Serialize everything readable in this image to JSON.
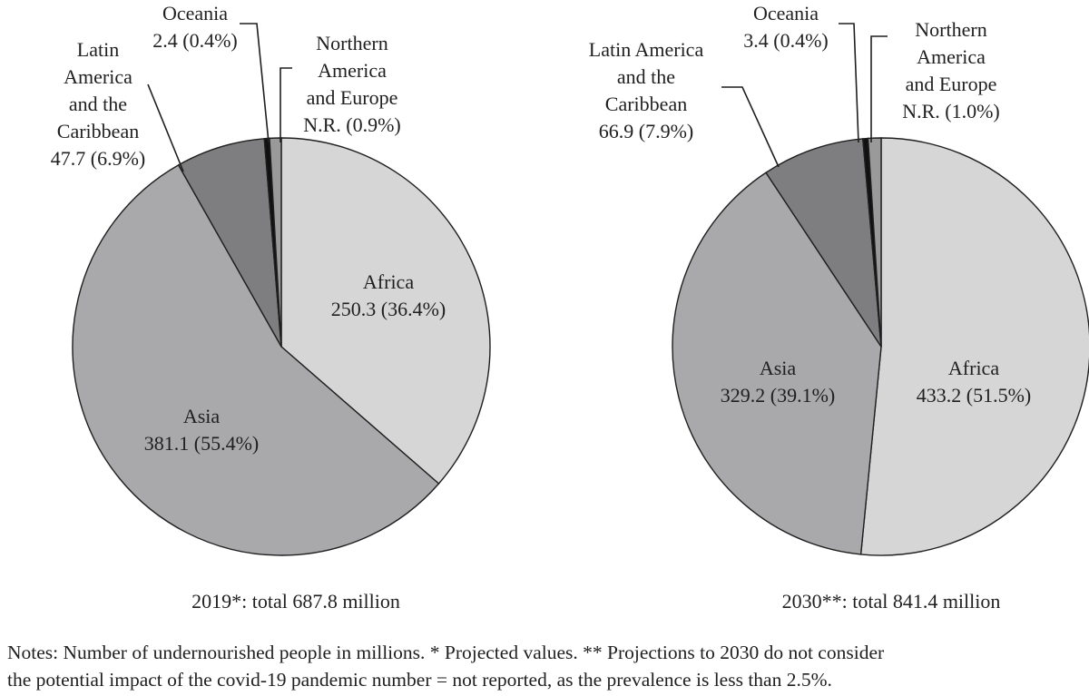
{
  "chart_data": [
    {
      "type": "pie",
      "caption": "2019*: total 687.8 million",
      "slices": [
        {
          "label": "Africa",
          "value_text": "250.3 (36.4%)",
          "value": 250.3,
          "percent": 36.4,
          "color": "#d6d6d6"
        },
        {
          "label": "Asia",
          "value_text": "381.1 (55.4%)",
          "value": 381.1,
          "percent": 55.4,
          "color": "#a9a9ab"
        },
        {
          "label": "Latin America and the Caribbean",
          "label_lines": [
            "Latin",
            "America",
            "and the",
            "Caribbean",
            "47.7 (6.9%)"
          ],
          "value": 47.7,
          "percent": 6.9,
          "color": "#7e7e80"
        },
        {
          "label": "Oceania",
          "label_lines": [
            "Oceania",
            "2.4 (0.4%)"
          ],
          "value": 2.4,
          "percent": 0.4,
          "color": "#111111"
        },
        {
          "label": "Northern America and Europe",
          "label_lines": [
            "Northern",
            "America",
            "and Europe",
            "N.R. (0.9%)"
          ],
          "value": null,
          "percent": 0.9,
          "color": "#9a9a9a"
        }
      ]
    },
    {
      "type": "pie",
      "caption": "2030**: total 841.4 million",
      "slices": [
        {
          "label": "Africa",
          "value_text": "433.2 (51.5%)",
          "value": 433.2,
          "percent": 51.5,
          "color": "#d6d6d6"
        },
        {
          "label": "Asia",
          "value_text": "329.2 (39.1%)",
          "value": 329.2,
          "percent": 39.1,
          "color": "#a9a9ab"
        },
        {
          "label": "Latin America and the Caribbean",
          "label_lines": [
            "Latin America",
            "and the",
            "Caribbean",
            "66.9 (7.9%)"
          ],
          "value": 66.9,
          "percent": 7.9,
          "color": "#7e7e80"
        },
        {
          "label": "Oceania",
          "label_lines": [
            "Oceania",
            "3.4 (0.4%)"
          ],
          "value": 3.4,
          "percent": 0.4,
          "color": "#111111"
        },
        {
          "label": "Northern America and Europe",
          "label_lines": [
            "Northern",
            "America",
            "and Europe",
            "N.R. (1.0%)"
          ],
          "value": null,
          "percent": 1.0,
          "color": "#9a9a9a"
        }
      ]
    }
  ],
  "notes": {
    "line1": "Notes: Number of undernourished people in millions. * Projected values. ** Projections to 2030 do not consider",
    "line2": "the potential impact of the covid-19 pandemic number = not reported, as the prevalence is less than 2.5%."
  }
}
